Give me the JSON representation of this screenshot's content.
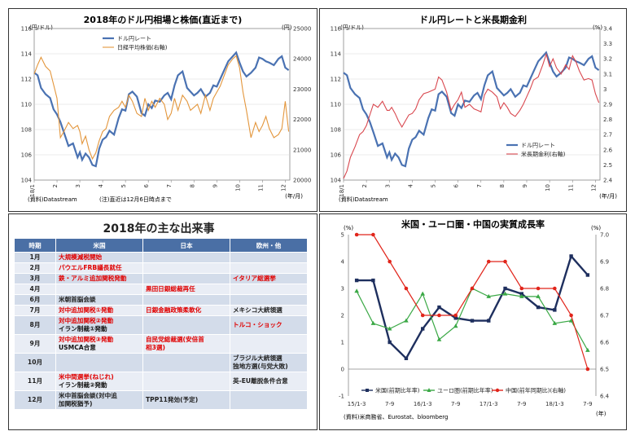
{
  "chart_data": [
    {
      "type": "line",
      "title": "2018年のドル円相場と株価(直近まで)",
      "y_left_unit": "(円/ドル)",
      "y_right_unit": "(円)",
      "ylim_left": [
        104,
        116
      ],
      "ylim_right": [
        20000,
        25000
      ],
      "yticks_left": [
        "104",
        "106",
        "108",
        "110",
        "112",
        "114",
        "116"
      ],
      "yticks_right": [
        "20000",
        "21000",
        "22000",
        "23000",
        "24000",
        "25000"
      ],
      "xticks": [
        "18/1",
        "2",
        "3",
        "4",
        "5",
        "6",
        "7",
        "8",
        "9",
        "10",
        "11",
        "12"
      ],
      "x_unit": "(年/月)",
      "source": "(資料)Datastream",
      "note": "(注)直近は12月6日時点まで",
      "series": [
        {
          "name": "ドル円レート",
          "axis": "left",
          "color": "#4a72b2",
          "x": [
            1,
            1.15,
            1.3,
            1.5,
            1.7,
            1.85,
            2,
            2.15,
            2.3,
            2.5,
            2.7,
            2.9,
            3,
            3.1,
            3.25,
            3.4,
            3.55,
            3.7,
            3.85,
            4,
            4.15,
            4.3,
            4.5,
            4.7,
            4.85,
            5,
            5.15,
            5.3,
            5.5,
            5.7,
            5.85,
            6,
            6.15,
            6.3,
            6.5,
            6.7,
            6.85,
            7,
            7.15,
            7.3,
            7.5,
            7.7,
            7.85,
            8,
            8.15,
            8.3,
            8.5,
            8.7,
            8.85,
            9,
            9.15,
            9.3,
            9.5,
            9.7,
            9.85,
            10,
            10.15,
            10.3,
            10.5,
            10.7,
            10.85,
            11,
            11.15,
            11.3,
            11.5,
            11.7,
            11.85,
            12,
            12.15
          ],
          "y": [
            112.5,
            112.3,
            111.3,
            110.8,
            110.5,
            109.6,
            109.2,
            108.6,
            107.8,
            106.7,
            106.9,
            105.8,
            106.2,
            105.6,
            106.1,
            105.8,
            105.2,
            105.1,
            106.5,
            107.2,
            107.4,
            107.9,
            107.6,
            108.9,
            109.6,
            109.5,
            110.8,
            111.0,
            110.6,
            109.3,
            109.1,
            110.0,
            109.7,
            110.3,
            110.2,
            110.7,
            110.9,
            110.4,
            111.5,
            112.3,
            112.6,
            111.3,
            111.0,
            110.7,
            110.9,
            111.2,
            110.6,
            110.9,
            111.5,
            111.4,
            112.0,
            112.6,
            113.4,
            113.8,
            114.1,
            113.3,
            112.6,
            112.2,
            112.5,
            112.9,
            113.7,
            113.6,
            113.4,
            113.3,
            113.1,
            113.6,
            113.8,
            112.9,
            112.7
          ]
        },
        {
          "name": "日経平均株価(右軸)",
          "axis": "right",
          "color": "#e3963c",
          "x": [
            1,
            1.15,
            1.3,
            1.5,
            1.7,
            1.85,
            2,
            2.15,
            2.3,
            2.5,
            2.7,
            2.9,
            3,
            3.1,
            3.25,
            3.4,
            3.55,
            3.7,
            3.85,
            4,
            4.15,
            4.3,
            4.5,
            4.7,
            4.85,
            5,
            5.15,
            5.3,
            5.5,
            5.7,
            5.85,
            6,
            6.15,
            6.3,
            6.5,
            6.7,
            6.85,
            7,
            7.15,
            7.3,
            7.5,
            7.7,
            7.85,
            8,
            8.15,
            8.3,
            8.5,
            8.7,
            8.85,
            9,
            9.15,
            9.3,
            9.5,
            9.7,
            9.85,
            10,
            10.15,
            10.3,
            10.5,
            10.7,
            10.85,
            11,
            11.15,
            11.3,
            11.5,
            11.7,
            11.85,
            12,
            12.15
          ],
          "y": [
            23500,
            23800,
            24050,
            23750,
            23600,
            23150,
            22700,
            21400,
            21600,
            21900,
            21700,
            21800,
            21600,
            21200,
            21450,
            21000,
            20700,
            20900,
            21300,
            21600,
            21700,
            22100,
            22300,
            22400,
            22600,
            22400,
            22800,
            22600,
            22200,
            22100,
            22700,
            22300,
            22600,
            22400,
            22700,
            22500,
            22000,
            22200,
            22700,
            22300,
            22800,
            22600,
            22300,
            22400,
            22500,
            22200,
            22800,
            22300,
            22700,
            22900,
            23100,
            23400,
            23800,
            24000,
            24100,
            23700,
            22900,
            22300,
            21400,
            21900,
            21600,
            21800,
            22100,
            21700,
            21400,
            21500,
            21700,
            22600,
            21600
          ]
        }
      ]
    },
    {
      "type": "line",
      "title": "ドル円レートと米長期金利",
      "y_left_unit": "(円/ドル)",
      "y_right_unit": "(%)",
      "ylim_left": [
        104,
        116
      ],
      "ylim_right": [
        2.4,
        3.4
      ],
      "yticks_left": [
        "104",
        "106",
        "108",
        "110",
        "112",
        "114",
        "116"
      ],
      "yticks_right": [
        "2.4",
        "2.5",
        "2.6",
        "2.7",
        "2.8",
        "2.9",
        "3",
        "3.1",
        "3.2",
        "3.3",
        "3.4"
      ],
      "xticks": [
        "18/1",
        "2",
        "3",
        "4",
        "5",
        "6",
        "7",
        "8",
        "9",
        "10",
        "11",
        "12"
      ],
      "x_unit": "(年/月)",
      "source": "(資料)Datastream",
      "series": [
        {
          "name": "ドル円レート",
          "axis": "left",
          "color": "#4a72b2",
          "x": [
            1,
            1.15,
            1.3,
            1.5,
            1.7,
            1.85,
            2,
            2.15,
            2.3,
            2.5,
            2.7,
            2.9,
            3,
            3.1,
            3.25,
            3.4,
            3.55,
            3.7,
            3.85,
            4,
            4.15,
            4.3,
            4.5,
            4.7,
            4.85,
            5,
            5.15,
            5.3,
            5.5,
            5.7,
            5.85,
            6,
            6.15,
            6.3,
            6.5,
            6.7,
            6.85,
            7,
            7.15,
            7.3,
            7.5,
            7.7,
            7.85,
            8,
            8.15,
            8.3,
            8.5,
            8.7,
            8.85,
            9,
            9.15,
            9.3,
            9.5,
            9.7,
            9.85,
            10,
            10.15,
            10.3,
            10.5,
            10.7,
            10.85,
            11,
            11.15,
            11.3,
            11.5,
            11.7,
            11.85,
            12,
            12.15
          ],
          "y": [
            112.5,
            112.3,
            111.3,
            110.8,
            110.5,
            109.6,
            109.2,
            108.6,
            107.8,
            106.7,
            106.9,
            105.8,
            106.2,
            105.6,
            106.1,
            105.8,
            105.2,
            105.1,
            106.5,
            107.2,
            107.4,
            107.9,
            107.6,
            108.9,
            109.6,
            109.5,
            110.8,
            111.0,
            110.6,
            109.3,
            109.1,
            110.0,
            109.7,
            110.3,
            110.2,
            110.7,
            110.9,
            110.4,
            111.5,
            112.3,
            112.6,
            111.3,
            111.0,
            110.7,
            110.9,
            111.2,
            110.6,
            110.9,
            111.5,
            111.4,
            112.0,
            112.6,
            113.4,
            113.8,
            114.1,
            113.3,
            112.6,
            112.2,
            112.5,
            112.9,
            113.7,
            113.6,
            113.4,
            113.3,
            113.1,
            113.6,
            113.8,
            112.9,
            112.7
          ]
        },
        {
          "name": "米長期金利(右軸)",
          "axis": "right",
          "color": "#d9484f",
          "x": [
            1,
            1.15,
            1.3,
            1.5,
            1.7,
            1.85,
            2,
            2.15,
            2.3,
            2.5,
            2.7,
            2.9,
            3,
            3.1,
            3.25,
            3.4,
            3.55,
            3.7,
            3.85,
            4,
            4.15,
            4.3,
            4.5,
            4.7,
            4.85,
            5,
            5.15,
            5.3,
            5.5,
            5.7,
            5.85,
            6,
            6.15,
            6.3,
            6.5,
            6.7,
            6.85,
            7,
            7.15,
            7.3,
            7.5,
            7.7,
            7.85,
            8,
            8.15,
            8.3,
            8.5,
            8.7,
            8.85,
            9,
            9.15,
            9.3,
            9.5,
            9.7,
            9.85,
            10,
            10.15,
            10.3,
            10.5,
            10.7,
            10.85,
            11,
            11.15,
            11.3,
            11.5,
            11.7,
            11.85,
            12,
            12.15
          ],
          "y": [
            2.41,
            2.46,
            2.55,
            2.62,
            2.7,
            2.72,
            2.76,
            2.83,
            2.9,
            2.88,
            2.92,
            2.86,
            2.86,
            2.88,
            2.84,
            2.79,
            2.75,
            2.79,
            2.83,
            2.84,
            2.87,
            2.93,
            2.97,
            2.98,
            2.99,
            3.0,
            3.08,
            3.06,
            2.98,
            2.86,
            2.9,
            2.93,
            2.98,
            2.88,
            2.9,
            2.87,
            2.86,
            2.85,
            2.96,
            3.0,
            2.98,
            2.95,
            2.87,
            2.91,
            2.88,
            2.84,
            2.82,
            2.86,
            2.9,
            2.95,
            3.0,
            3.06,
            3.08,
            3.16,
            3.23,
            3.15,
            3.2,
            3.14,
            3.1,
            3.16,
            3.13,
            3.22,
            3.18,
            3.12,
            3.06,
            3.07,
            3.06,
            2.97,
            2.91
          ]
        }
      ]
    },
    {
      "type": "line",
      "title": "米国・ユーロ圏・中国の実質成長率",
      "y_left_unit": "(%)",
      "y_right_unit": "(%)",
      "ylim_left": [
        -1,
        5
      ],
      "ylim_right": [
        6.4,
        7.0
      ],
      "yticks_left": [
        "-1",
        "0",
        "1",
        "2",
        "3",
        "4",
        "5"
      ],
      "yticks_right": [
        "6.4",
        "6.5",
        "6.6",
        "6.7",
        "6.8",
        "6.9",
        "7.0"
      ],
      "categories": [
        "15/1-3",
        "4-6",
        "7-9",
        "10-12",
        "16/1-3",
        "4-6",
        "7-9",
        "10-12",
        "17/1-3",
        "4-6",
        "7-9",
        "10-12",
        "18/1-3",
        "4-6",
        "7-9"
      ],
      "xtick_labels": [
        "15/1-3",
        "",
        "7-9",
        "",
        "16/1-3",
        "",
        "7-9",
        "",
        "17/1-3",
        "",
        "7-9",
        "",
        "18/1-3",
        "",
        "7-9"
      ],
      "x_unit": "(年)",
      "source": "(資料)米商務省、Eurostat、bloomberg",
      "series": [
        {
          "name": "米国(前期比年率)",
          "axis": "left",
          "color": "#1e2f5e",
          "marker": "square",
          "values": [
            3.3,
            3.3,
            1.0,
            0.4,
            1.5,
            2.3,
            1.9,
            1.8,
            1.8,
            3.0,
            2.8,
            2.3,
            2.2,
            4.2,
            3.5
          ]
        },
        {
          "name": "ユーロ圏(前期比年率)",
          "axis": "left",
          "color": "#3aa845",
          "marker": "triangle",
          "values": [
            2.9,
            1.7,
            1.5,
            1.8,
            2.8,
            1.1,
            1.6,
            3.0,
            2.7,
            2.8,
            2.7,
            2.7,
            1.7,
            1.8,
            0.7
          ]
        },
        {
          "name": "中国(前年同期比)(右軸)",
          "axis": "right",
          "color": "#e1251b",
          "marker": "circle",
          "values": [
            7.0,
            7.0,
            6.9,
            6.8,
            6.7,
            6.7,
            6.7,
            6.8,
            6.9,
            6.9,
            6.8,
            6.8,
            6.8,
            6.7,
            6.5
          ]
        }
      ]
    }
  ],
  "events": {
    "title": "2018年の主な出来事",
    "headers": [
      "時期",
      "米国",
      "日本",
      "欧州・他"
    ],
    "rows": [
      {
        "month": "1月",
        "us": "大規模減税開始",
        "us_color": "red",
        "jp": "",
        "jp_color": "black",
        "eu": "",
        "eu_color": "black"
      },
      {
        "month": "2月",
        "us": "パウエルFRB議長就任",
        "us_color": "red",
        "jp": "",
        "jp_color": "black",
        "eu": "",
        "eu_color": "black"
      },
      {
        "month": "3月",
        "us": "鉄・アルミ追加関税発動",
        "us_color": "red",
        "jp": "",
        "jp_color": "black",
        "eu": "イタリア総選挙",
        "eu_color": "red"
      },
      {
        "month": "4月",
        "us": "",
        "us_color": "black",
        "jp": "黒田日銀総裁再任",
        "jp_color": "red",
        "eu": "",
        "eu_color": "black"
      },
      {
        "month": "6月",
        "us": "米朝首脳会談",
        "us_color": "black",
        "jp": "",
        "jp_color": "black",
        "eu": "",
        "eu_color": "black"
      },
      {
        "month": "7月",
        "us": "対中追加関税①発動",
        "us_color": "red",
        "jp": "日銀金融政策柔軟化",
        "jp_color": "red",
        "eu": "メキシコ大統領選",
        "eu_color": "black"
      },
      {
        "month": "8月",
        "us": "対中追加関税②発動\nイラン制裁①発動",
        "us_color": "mixed",
        "jp": "",
        "jp_color": "black",
        "eu": "トルコ・ショック",
        "eu_color": "red"
      },
      {
        "month": "9月",
        "us": "対中追加関税③発動\nUSMCA合意",
        "us_color": "mixed",
        "jp": "自民党総裁選(安倍首\n相3選)",
        "jp_color": "red",
        "eu": "",
        "eu_color": "black"
      },
      {
        "month": "10月",
        "us": "",
        "us_color": "black",
        "jp": "",
        "jp_color": "black",
        "eu": "ブラジル大統領選\n独地方選(与党大敗)",
        "eu_color": "black"
      },
      {
        "month": "11月",
        "us": "米中間選挙(ねじれ)\nイラン制裁②発動",
        "us_color": "mixed",
        "jp": "",
        "jp_color": "black",
        "eu": "英-EU離脱条件合意",
        "eu_color": "black"
      },
      {
        "month": "12月",
        "us": "米中首脳会談(対中追\n加関税猶予)",
        "us_color": "black",
        "jp": "TPP11発効(予定)",
        "jp_color": "black",
        "eu": "",
        "eu_color": "black"
      }
    ]
  }
}
